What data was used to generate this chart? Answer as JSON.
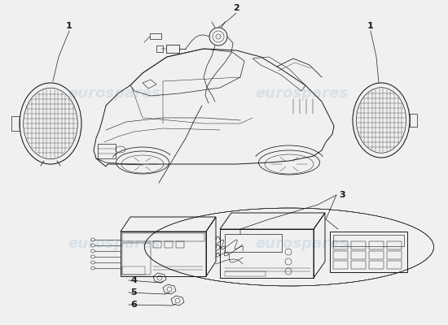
{
  "bg_color": "#f0f0f0",
  "line_color": "#1a1a1a",
  "wm_color": "#b8cfe0",
  "wm_text": "eurospares",
  "wm_alpha": 0.45,
  "fig_w": 5.5,
  "fig_h": 4.0,
  "dpi": 100,
  "label_fs": 8,
  "wm_fs": 13
}
